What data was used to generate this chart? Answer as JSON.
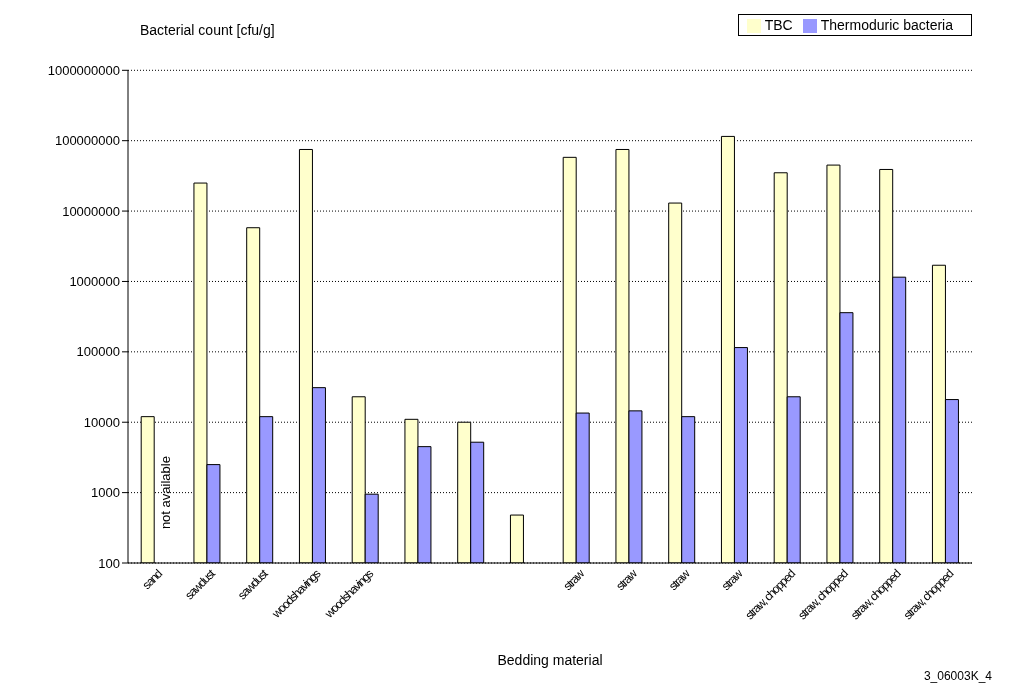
{
  "chart_data": {
    "type": "bar",
    "xlabel": "Bedding material",
    "ylabel": "Bacterial count [cfu/g]",
    "categories": [
      "sand",
      "sawdust",
      "sawdust",
      "woodshavings",
      "woodshavings",
      null,
      null,
      null,
      "straw",
      "straw",
      "straw",
      "straw",
      "straw, chopped",
      "straw, chopped",
      "straw, chopped",
      "straw, chopped"
    ],
    "series": [
      {
        "name": "TBC",
        "color": "#ffffcc",
        "values": [
          12000,
          25000000,
          5800000,
          75000000,
          23000,
          11000,
          10000,
          480,
          58000000,
          75000000,
          13000000,
          115000000,
          35000000,
          45000000,
          39000000,
          1700000
        ]
      },
      {
        "name": "Thermoduric bacteria",
        "color": "#9999ff",
        "values": [
          null,
          2500,
          12000,
          31000,
          950,
          4500,
          5200,
          null,
          13500,
          14500,
          12000,
          115000,
          23000,
          360000,
          1150000,
          21000
        ]
      }
    ],
    "log": true,
    "ylim": [
      100,
      1000000000
    ],
    "yticks": [
      100,
      1000,
      10000,
      100000,
      1000000,
      10000000,
      100000000,
      1000000000
    ],
    "grid": "y",
    "legend": "top right",
    "annotations": [
      "not available",
      "3_06003K_4"
    ]
  }
}
